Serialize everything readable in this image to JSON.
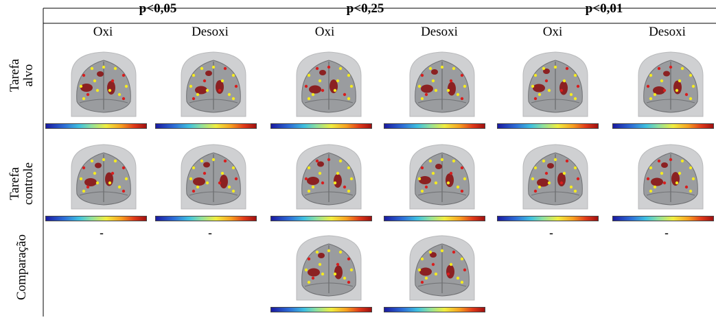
{
  "headers": {
    "p1": "p<0,05",
    "p2": "p<0,25",
    "p3": "p<0,01"
  },
  "subheaders": [
    "Oxi",
    "Desoxi",
    "Oxi",
    "Desoxi",
    "Oxi",
    "Desoxi"
  ],
  "rows": {
    "row1_line1": "Tarefa",
    "row1_line2": "alvo",
    "row2_line1": "Tarefa",
    "row2_line2": "controle",
    "row3": "Comparação"
  },
  "dash": "-",
  "colors": {
    "head": "#cfd0d2",
    "brain": "#9a9c9f",
    "dot_red": "#d81e1e",
    "dot_yellow": "#f4ea22",
    "blob": "#8a1414"
  }
}
